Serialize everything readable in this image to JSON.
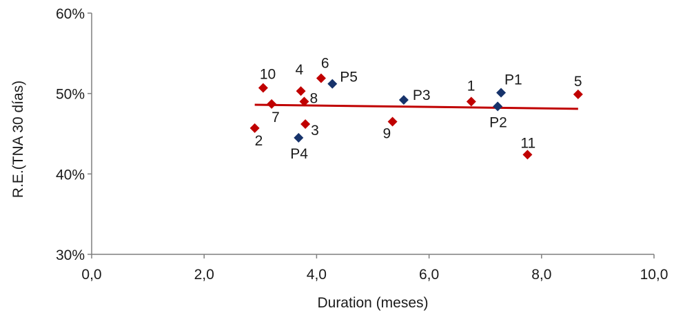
{
  "chart_data": {
    "type": "scatter",
    "xlabel": "Duration (meses)",
    "ylabel": "R.E.(TNA 30 días)",
    "xlim": [
      0,
      10
    ],
    "ylim": [
      0.3,
      0.6
    ],
    "x_ticks": [
      0,
      2,
      4,
      6,
      8,
      10
    ],
    "y_ticks": [
      0.3,
      0.4,
      0.5,
      0.6
    ],
    "x_tick_labels": [
      "0,0",
      "2,0",
      "4,0",
      "6,0",
      "8,0",
      "10,0"
    ],
    "y_tick_labels": [
      "30%",
      "40%",
      "50%",
      "60%"
    ],
    "grid": false,
    "series": [
      {
        "color": "#c00000",
        "marker": "diamond",
        "points": [
          {
            "label": "1",
            "x": 6.75,
            "y": 0.49
          },
          {
            "label": "2",
            "x": 2.9,
            "y": 0.457
          },
          {
            "label": "3",
            "x": 3.8,
            "y": 0.462
          },
          {
            "label": "4",
            "x": 3.72,
            "y": 0.503
          },
          {
            "label": "5",
            "x": 8.65,
            "y": 0.499
          },
          {
            "label": "6",
            "x": 4.08,
            "y": 0.519
          },
          {
            "label": "7",
            "x": 3.2,
            "y": 0.487
          },
          {
            "label": "8",
            "x": 3.78,
            "y": 0.49
          },
          {
            "label": "9",
            "x": 5.35,
            "y": 0.465
          },
          {
            "label": "10",
            "x": 3.05,
            "y": 0.507
          },
          {
            "label": "11",
            "x": 7.75,
            "y": 0.424
          }
        ]
      },
      {
        "color": "#17336b",
        "marker": "diamond",
        "points": [
          {
            "label": "P1",
            "x": 7.28,
            "y": 0.501
          },
          {
            "label": "P2",
            "x": 7.22,
            "y": 0.484
          },
          {
            "label": "P3",
            "x": 5.55,
            "y": 0.492
          },
          {
            "label": "P4",
            "x": 3.68,
            "y": 0.445
          },
          {
            "label": "P5",
            "x": 4.28,
            "y": 0.512
          }
        ]
      }
    ],
    "trendline": {
      "color": "#c00000",
      "x": [
        2.9,
        8.65
      ],
      "y": [
        0.486,
        0.481
      ]
    }
  }
}
